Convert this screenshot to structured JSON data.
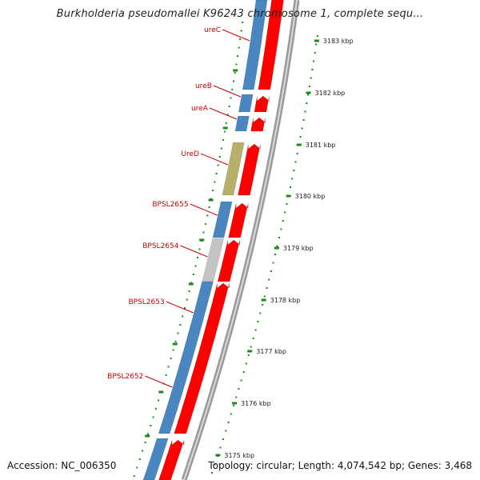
{
  "title": "Burkholderia pseudomallei K96243 chromosome 1, complete sequ...",
  "accession": "Accession: NC_006350",
  "summary": "Topology: circular; Length: 4,074,542 bp; Genes: 3,468",
  "colors": {
    "cds_forward": "#ff0000",
    "gene_blue": "#4a86c0",
    "gene_olive": "#b7b06a",
    "gene_grey": "#c4c4c4",
    "tick_green": "#1a8a1a",
    "label_red": "#cc0000",
    "backbone": "#777777"
  },
  "ruler_ticks": [
    "3183 kbp",
    "3182 kbp",
    "3181 kbp",
    "3180 kbp",
    "3179 kbp",
    "3178 kbp",
    "3177 kbp",
    "3176 kbp",
    "3175 kbp"
  ],
  "genes": [
    {
      "name": "ureC",
      "color": "blue"
    },
    {
      "name": "ureB",
      "color": "blue"
    },
    {
      "name": "ureA",
      "color": "blue"
    },
    {
      "name": "UreD",
      "color": "olive"
    },
    {
      "name": "BPSL2655",
      "color": "blue"
    },
    {
      "name": "BPSL2654",
      "color": "grey"
    },
    {
      "name": "BPSL2653",
      "color": "blue"
    },
    {
      "name": "BPSL2652",
      "color": "blue"
    }
  ]
}
